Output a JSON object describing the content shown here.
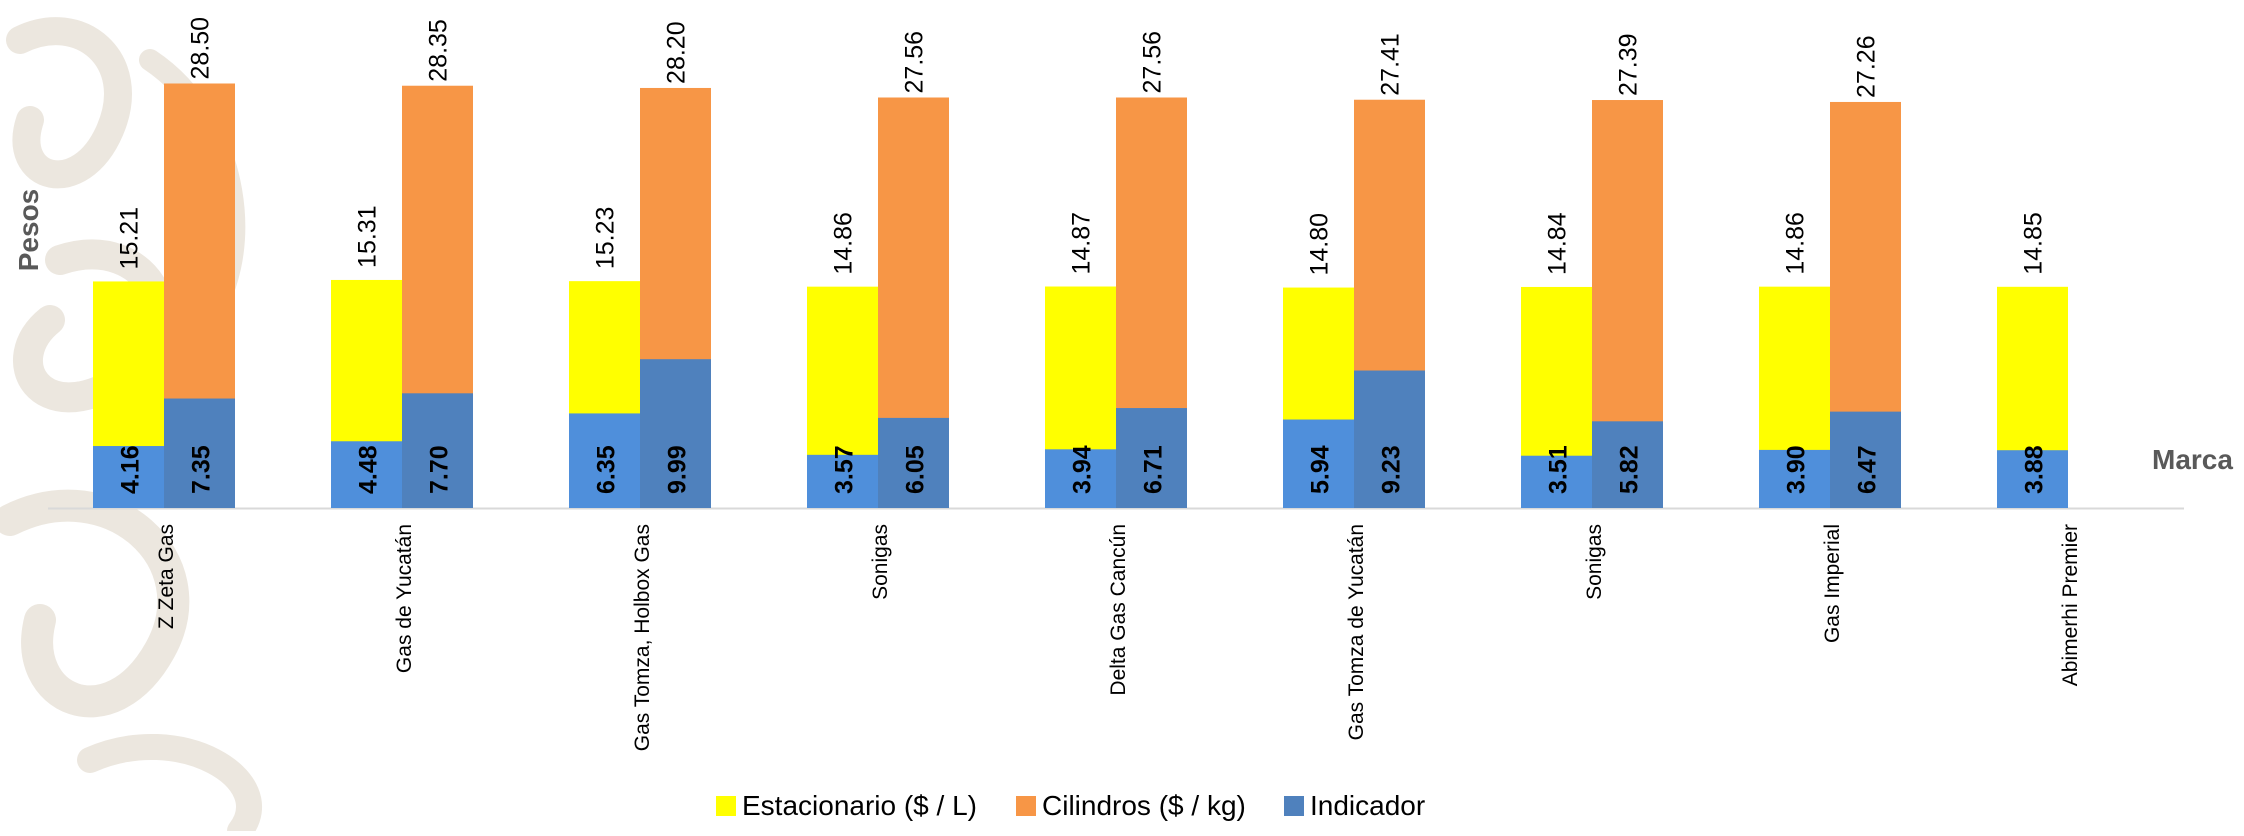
{
  "colors": {
    "estacionario": "#ffff00",
    "cilindros": "#f79646",
    "indicador_estacionario": "#4f8fdb",
    "indicador_cilindros": "#4f81bd",
    "axis_line": "#d9d9d9",
    "text": "#000000",
    "axis_title": "#595959",
    "watermark": "#ece7df"
  },
  "chart_data": {
    "type": "bar",
    "title": "",
    "xlabel": "Marca",
    "ylabel": "Pesos",
    "ylim": [
      0,
      30
    ],
    "grid": false,
    "legend_position": "bottom",
    "categories": [
      "Z Zeta Gas",
      "Gas de Yucatán",
      "Gas Tomza, Holbox Gas",
      "Sonigas",
      "Delta Gas Cancún",
      "Gas Tomza de Yucatán",
      "Sonigas",
      "Gas Imperial",
      "Abimerhi Premier"
    ],
    "series": [
      {
        "name": "Estacionario ($ / L)",
        "values": [
          15.21,
          15.31,
          15.23,
          14.86,
          14.87,
          14.8,
          14.84,
          14.86,
          14.85
        ],
        "labels": [
          "15.21",
          "15.31",
          "15.23",
          "14.86",
          "14.87",
          "14.80",
          "14.84",
          "14.86",
          "14.85"
        ]
      },
      {
        "name": "Cilindros ($ / kg)",
        "values": [
          28.5,
          28.35,
          28.2,
          27.56,
          27.56,
          27.41,
          27.39,
          27.26,
          null
        ],
        "labels": [
          "28.50",
          "28.35",
          "28.20",
          "27.56",
          "27.56",
          "27.41",
          "27.39",
          "27.26",
          ""
        ]
      },
      {
        "name": "Indicador",
        "values_estacionario": [
          4.16,
          4.48,
          6.35,
          3.57,
          3.94,
          5.94,
          3.51,
          3.9,
          3.88
        ],
        "labels_estacionario": [
          "4.16",
          "4.48",
          "6.35",
          "3.57",
          "3.94",
          "5.94",
          "3.51",
          "3.90",
          "3.88"
        ],
        "values_cilindros": [
          7.35,
          7.7,
          9.99,
          6.05,
          6.71,
          9.23,
          5.82,
          6.47,
          null
        ],
        "labels_cilindros": [
          "7.35",
          "7.70",
          "9.99",
          "6.05",
          "6.71",
          "9.23",
          "5.82",
          "6.47",
          ""
        ]
      }
    ]
  }
}
